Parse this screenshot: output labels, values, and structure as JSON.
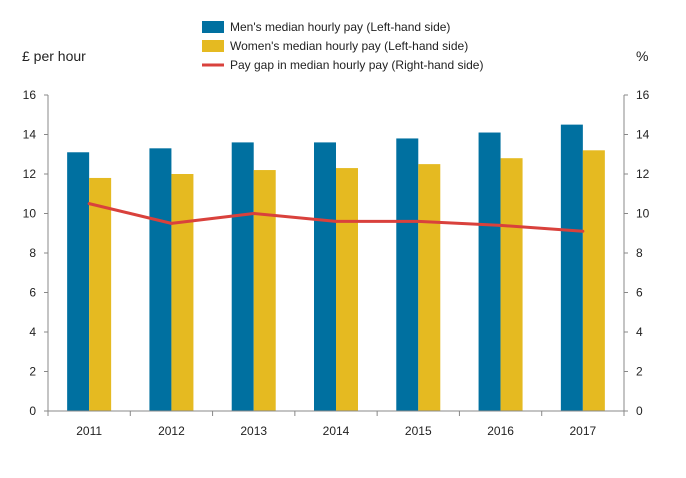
{
  "chart_data": {
    "type": "bar",
    "categories": [
      "2011",
      "2012",
      "2013",
      "2014",
      "2015",
      "2016",
      "2017"
    ],
    "series": [
      {
        "name": "Men's median hourly pay (Left-hand side)",
        "kind": "bar",
        "axis": "left",
        "color": "#0070a0",
        "values": [
          13.1,
          13.3,
          13.6,
          13.6,
          13.8,
          14.1,
          14.5
        ]
      },
      {
        "name": "Women's median hourly pay (Left-hand side)",
        "kind": "bar",
        "axis": "left",
        "color": "#e5ba21",
        "values": [
          11.8,
          12.0,
          12.2,
          12.3,
          12.5,
          12.8,
          13.2
        ]
      },
      {
        "name": "Pay gap in median hourly pay (Right-hand side)",
        "kind": "line",
        "axis": "right",
        "color": "#d9413c",
        "values": [
          10.5,
          9.5,
          10.0,
          9.6,
          9.6,
          9.4,
          9.1
        ]
      }
    ],
    "ylabel_left": "£ per hour",
    "ylabel_right": "%",
    "ylim_left": [
      0,
      16
    ],
    "ylim_right": [
      0,
      16
    ],
    "yticks": [
      "0",
      "2",
      "4",
      "6",
      "8",
      "10",
      "12",
      "14",
      "16"
    ],
    "grid": false,
    "legend_position": "top"
  }
}
